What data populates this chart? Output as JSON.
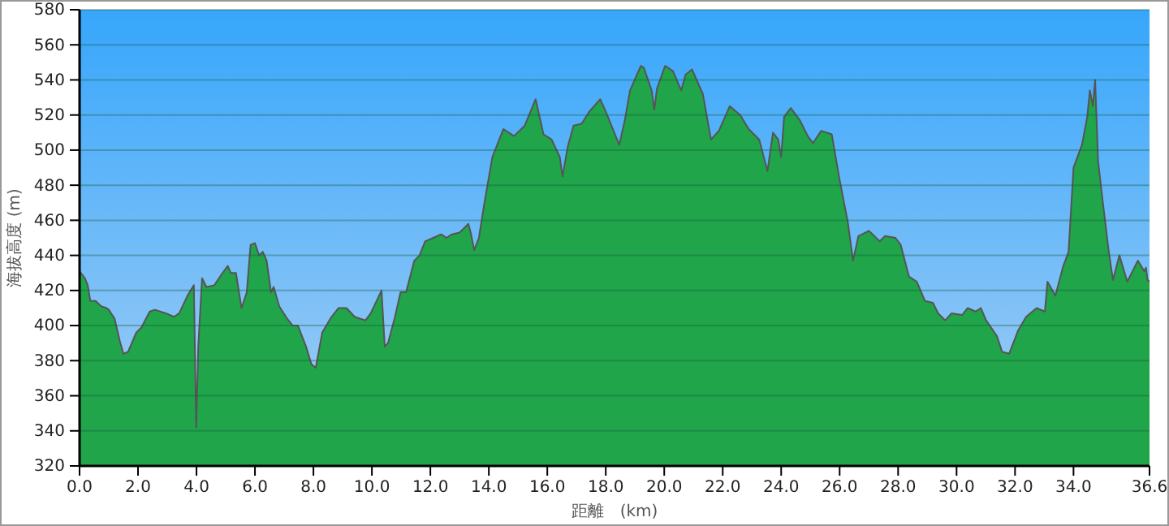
{
  "chart_data": {
    "type": "area",
    "xlabel": "距離　(km)",
    "ylabel": "海拔高度 (m)",
    "xlim": [
      0,
      36.6
    ],
    "xticks": [
      {
        "value": 0,
        "label": "0.0"
      },
      {
        "value": 2,
        "label": "2.0"
      },
      {
        "value": 4,
        "label": "4.0"
      },
      {
        "value": 6,
        "label": "6.0"
      },
      {
        "value": 8,
        "label": "8.0"
      },
      {
        "value": 10,
        "label": "10.0"
      },
      {
        "value": 12,
        "label": "12.0"
      },
      {
        "value": 14,
        "label": "14.0"
      },
      {
        "value": 16,
        "label": "16.0"
      },
      {
        "value": 18,
        "label": "18.0"
      },
      {
        "value": 20,
        "label": "20.0"
      },
      {
        "value": 22,
        "label": "22.0"
      },
      {
        "value": 24,
        "label": "24.0"
      },
      {
        "value": 26,
        "label": "26.0"
      },
      {
        "value": 28,
        "label": "28.0"
      },
      {
        "value": 30,
        "label": "30.0"
      },
      {
        "value": 32,
        "label": "32.0"
      },
      {
        "value": 34,
        "label": "34.0"
      },
      {
        "value": 36.6,
        "label": "36.6"
      }
    ],
    "ylim": [
      320,
      580
    ],
    "yticks": [
      320,
      340,
      360,
      380,
      400,
      420,
      440,
      460,
      480,
      500,
      520,
      540,
      560,
      580
    ],
    "grid": "y",
    "series": [
      {
        "color": "#20a54a",
        "x": [
          0,
          0.18,
          0.28,
          0.37,
          0.55,
          0.74,
          0.92,
          1.0,
          1.2,
          1.38,
          1.5,
          1.66,
          1.94,
          2.12,
          2.4,
          2.58,
          2.95,
          3.23,
          3.41,
          3.69,
          3.91,
          3.99,
          4.06,
          4.19,
          4.34,
          4.61,
          4.89,
          5.07,
          5.17,
          5.35,
          5.54,
          5.72,
          5.85,
          6.0,
          6.14,
          6.27,
          6.4,
          6.55,
          6.64,
          6.83,
          7.1,
          7.29,
          7.47,
          7.75,
          7.93,
          8.08,
          8.3,
          8.58,
          8.86,
          9.13,
          9.41,
          9.59,
          9.78,
          9.96,
          10.33,
          10.44,
          10.55,
          10.79,
          10.98,
          11.17,
          11.45,
          11.63,
          11.82,
          12.1,
          12.37,
          12.55,
          12.74,
          13.0,
          13.3,
          13.38,
          13.5,
          13.66,
          13.85,
          14.12,
          14.5,
          14.86,
          15.23,
          15.6,
          15.87,
          16.15,
          16.43,
          16.52,
          16.7,
          16.9,
          17.17,
          17.44,
          17.81,
          18.0,
          18.46,
          18.64,
          18.83,
          19.2,
          19.3,
          19.57,
          19.66,
          19.75,
          20.03,
          20.3,
          20.58,
          20.73,
          20.95,
          21.32,
          21.6,
          21.87,
          22.24,
          22.6,
          22.89,
          23.25,
          23.53,
          23.72,
          23.9,
          24.0,
          24.1,
          24.33,
          24.64,
          24.91,
          25.09,
          25.37,
          25.73,
          26.0,
          26.28,
          26.46,
          26.64,
          27.0,
          27.19,
          27.37,
          27.55,
          27.91,
          28.09,
          28.37,
          28.64,
          28.92,
          29.19,
          29.37,
          29.61,
          29.83,
          30.19,
          30.38,
          30.65,
          30.83,
          31.01,
          31.38,
          31.56,
          31.8,
          32.1,
          32.38,
          32.74,
          33.02,
          33.11,
          33.38,
          33.65,
          33.83,
          34.0,
          34.29,
          34.47,
          34.56,
          34.66,
          34.74,
          34.84,
          34.97,
          35.2,
          35.35,
          35.57,
          35.84,
          36.2,
          36.42,
          36.48,
          36.53,
          36.6
        ],
        "values": [
          431,
          427,
          423,
          414,
          414,
          411,
          410,
          409,
          404,
          391,
          384,
          385,
          396,
          399,
          408,
          409,
          407,
          405,
          407,
          417,
          423,
          342,
          388,
          427,
          422,
          423,
          430,
          434,
          430,
          430,
          410,
          419,
          446,
          447,
          440,
          442,
          437,
          419,
          422,
          411,
          404,
          400,
          400,
          388,
          378,
          376,
          396,
          404,
          410,
          410,
          405,
          404,
          403,
          407,
          420,
          388,
          390,
          405,
          419,
          419,
          437,
          440,
          448,
          450,
          452,
          450,
          452,
          453,
          458,
          453,
          443,
          450,
          470,
          496,
          512,
          508,
          514,
          529,
          509,
          506,
          496,
          485,
          502,
          514,
          515,
          522,
          529,
          522,
          503,
          516,
          534,
          548,
          547,
          534,
          523,
          535,
          548,
          545,
          534,
          543,
          546,
          532,
          506,
          511,
          525,
          520,
          512,
          506,
          488,
          510,
          506,
          496,
          519,
          524,
          517,
          508,
          504,
          511,
          509,
          483,
          459,
          437,
          451,
          454,
          451,
          448,
          451,
          450,
          446,
          428,
          425,
          414,
          413,
          407,
          403,
          407,
          406,
          410,
          408,
          410,
          403,
          394,
          385,
          384,
          397,
          405,
          410,
          408,
          425,
          417,
          434,
          442,
          490,
          503,
          519,
          534,
          525,
          540,
          494,
          475,
          443,
          426,
          440,
          425,
          437,
          431,
          433,
          426,
          425
        ]
      }
    ]
  }
}
